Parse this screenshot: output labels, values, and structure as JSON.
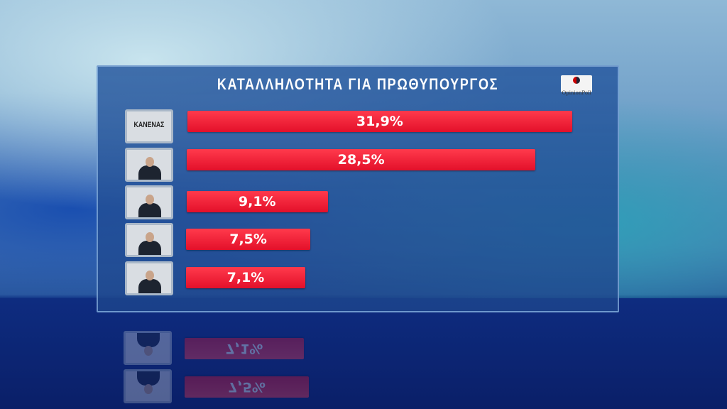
{
  "chart_data": {
    "type": "bar",
    "orientation": "horizontal",
    "title": "ΚΑΤΑΛΛΗΛΟΤΗΤΑ ΓΙΑ ΠΡΩΘΥΠΟΥΡΓΟΣ",
    "categories": [
      "ΚΑΝΕΝΑΣ",
      "candidate-photo-1",
      "candidate-photo-2",
      "candidate-photo-3",
      "candidate-photo-4"
    ],
    "values": [
      31.9,
      28.5,
      9.1,
      7.5,
      7.1
    ],
    "labels": [
      "31,9%",
      "28,5%",
      "9,1%",
      "7,5%",
      "7,1%"
    ],
    "bar_color": "#e8142c",
    "grid": false
  },
  "logo": "OpinionPoll"
}
